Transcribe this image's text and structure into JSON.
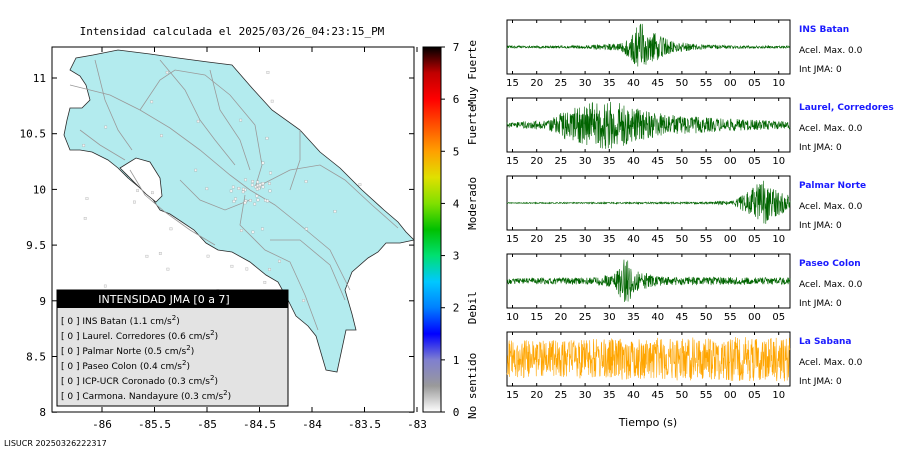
{
  "map": {
    "title": "Intensidad calculada el 2025/03/26_04:23:15_PM",
    "x_ticks": [
      "-86",
      "-85.5",
      "-85",
      "-84.5",
      "-84",
      "-83.5",
      "-83"
    ],
    "y_ticks": [
      "11",
      "10.5",
      "10",
      "9.5",
      "9",
      "8.5",
      "8"
    ],
    "land_color": "#b3ebee",
    "ocean_color": "#ffffff"
  },
  "legend": {
    "title": "INTENSIDAD JMA [0 a 7]",
    "entries": [
      {
        "level": "[ 0 ]",
        "name": "INS Batan",
        "value": "(1.1 cm/s",
        "sup": "2",
        "close": ")"
      },
      {
        "level": "[ 0 ]",
        "name": "Laurel. Corredores",
        "value": "(0.6 cm/s",
        "sup": "2",
        "close": ")"
      },
      {
        "level": "[ 0 ]",
        "name": "Palmar Norte",
        "value": "(0.5 cm/s",
        "sup": "2",
        "close": ")"
      },
      {
        "level": "[ 0 ]",
        "name": "Paseo Colon",
        "value": "(0.4 cm/s",
        "sup": "2",
        "close": ")"
      },
      {
        "level": "[ 0 ]",
        "name": "ICP-UCR Coronado",
        "value": "(0.3 cm/s",
        "sup": "2",
        "close": ")"
      },
      {
        "level": "[ 0 ]",
        "name": "Carmona. Nandayure",
        "value": "(0.3 cm/s",
        "sup": "2",
        "close": ")"
      }
    ]
  },
  "colorbar": {
    "ticks": [
      "0",
      "1",
      "2",
      "3",
      "4",
      "5",
      "6",
      "7"
    ],
    "range": [
      0,
      7
    ],
    "labels": [
      {
        "text": "No sentido",
        "center": 0.5
      },
      {
        "text": "Debil",
        "center": 2
      },
      {
        "text": "Moderado",
        "center": 4
      },
      {
        "text": "Fuerte",
        "center": 5.5
      },
      {
        "text": "Muy Fuerte",
        "center": 6.5
      }
    ],
    "colors": [
      "#ffffff",
      "#9a9a9a",
      "#7f7fd0",
      "#0000ff",
      "#0080ff",
      "#00c8ff",
      "#00e070",
      "#00c000",
      "#80e000",
      "#e0e000",
      "#ffa000",
      "#ff5000",
      "#ff0000",
      "#c00000",
      "#000000"
    ]
  },
  "chart_data": {
    "type": "line",
    "xlabel": "Tiempo (s)",
    "series": [
      {
        "name": "INS Batan",
        "color": "#006400",
        "acel_label": "Acel. Max. 0.0",
        "int_label": "Int JMA: 0",
        "x_ticks": [
          "15",
          "20",
          "25",
          "30",
          "35",
          "40",
          "45",
          "50",
          "55",
          "00",
          "05",
          "10"
        ],
        "envelope": [
          [
            0.0,
            0.05
          ],
          [
            0.25,
            0.06
          ],
          [
            0.4,
            0.15
          ],
          [
            0.44,
            0.55
          ],
          [
            0.47,
            1.0
          ],
          [
            0.52,
            0.6
          ],
          [
            0.58,
            0.25
          ],
          [
            0.68,
            0.1
          ],
          [
            0.8,
            0.06
          ],
          [
            1.0,
            0.05
          ]
        ]
      },
      {
        "name": "Laurel, Corredores",
        "color": "#006400",
        "acel_label": "Acel. Max. 0.0",
        "int_label": "Int JMA: 0",
        "x_ticks": [
          "15",
          "20",
          "25",
          "30",
          "35",
          "40",
          "45",
          "50",
          "55",
          "00",
          "05",
          "10"
        ],
        "envelope": [
          [
            0.0,
            0.12
          ],
          [
            0.15,
            0.2
          ],
          [
            0.2,
            0.55
          ],
          [
            0.3,
            0.9
          ],
          [
            0.38,
            1.0
          ],
          [
            0.45,
            0.7
          ],
          [
            0.55,
            0.45
          ],
          [
            0.7,
            0.3
          ],
          [
            0.85,
            0.22
          ],
          [
            1.0,
            0.15
          ]
        ]
      },
      {
        "name": "Palmar Norte",
        "color": "#006400",
        "acel_label": "Acel. Max. 0.0",
        "int_label": "Int JMA: 0",
        "x_ticks": [
          "15",
          "20",
          "25",
          "30",
          "35",
          "40",
          "45",
          "50",
          "55",
          "00",
          "05",
          "10"
        ],
        "envelope": [
          [
            0.0,
            0.02
          ],
          [
            0.7,
            0.04
          ],
          [
            0.8,
            0.1
          ],
          [
            0.86,
            0.5
          ],
          [
            0.9,
            1.0
          ],
          [
            0.94,
            0.6
          ],
          [
            1.0,
            0.3
          ]
        ]
      },
      {
        "name": "Paseo Colon",
        "color": "#006400",
        "acel_label": "Acel. Max. 0.0",
        "int_label": "Int JMA: 0",
        "x_ticks": [
          "10",
          "15",
          "20",
          "25",
          "30",
          "35",
          "40",
          "45",
          "50",
          "55",
          "00",
          "05"
        ],
        "envelope": [
          [
            0.0,
            0.12
          ],
          [
            0.3,
            0.14
          ],
          [
            0.38,
            0.3
          ],
          [
            0.42,
            1.0
          ],
          [
            0.46,
            0.4
          ],
          [
            0.55,
            0.18
          ],
          [
            1.0,
            0.14
          ]
        ]
      },
      {
        "name": "La Sabana",
        "color": "#ffa500",
        "acel_label": "Acel. Max. 0.0",
        "int_label": "Int JMA: 0",
        "x_ticks": [
          "15",
          "20",
          "25",
          "30",
          "35",
          "40",
          "45",
          "50",
          "55",
          "00",
          "05",
          "10"
        ],
        "envelope": [
          [
            0.0,
            0.75
          ],
          [
            0.5,
            0.85
          ],
          [
            1.0,
            0.9
          ]
        ]
      }
    ]
  },
  "footer": "LISUCR 20250326222317"
}
